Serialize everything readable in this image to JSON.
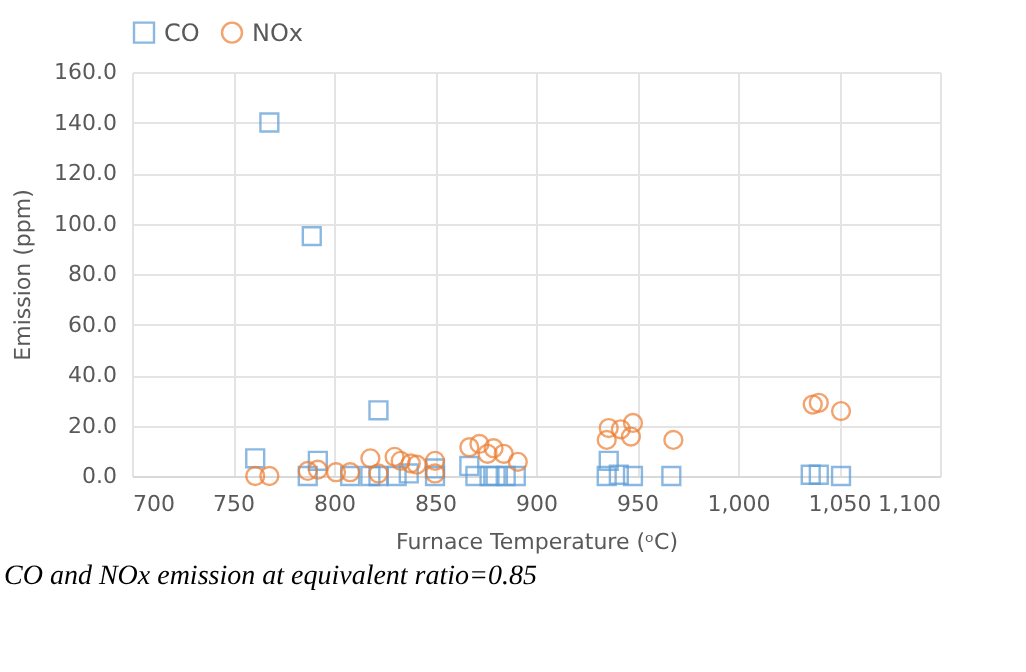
{
  "chart_data": {
    "type": "scatter",
    "xlabel": "Furnace Temperature (ᵒC)",
    "ylabel": "Emission (ppm)",
    "annotations": [
      "CO and NOx emission at equivalent ratio=0.85"
    ],
    "xlim": [
      700,
      1100
    ],
    "ylim": [
      0,
      160
    ],
    "xticks": [
      700,
      750,
      800,
      850,
      900,
      950,
      {
        "value": 1000,
        "label": "1,000"
      },
      {
        "value": 1050,
        "label": "1,050"
      },
      {
        "value": 1100,
        "label": "1,100"
      }
    ],
    "yticks": [
      {
        "value": 0,
        "label": "0.0"
      },
      {
        "value": 20,
        "label": "20.0"
      },
      {
        "value": 40,
        "label": "40.0"
      },
      {
        "value": 60,
        "label": "60.0"
      },
      {
        "value": 80,
        "label": "80.0"
      },
      {
        "value": 100,
        "label": "100.0"
      },
      {
        "value": 120,
        "label": "120.0"
      },
      {
        "value": 140,
        "label": "140.0"
      },
      {
        "value": 160,
        "label": "160.0"
      }
    ],
    "grid": true,
    "legend": "top",
    "series": [
      {
        "name": "CO",
        "color": "#5b9bd5",
        "marker": "square",
        "x": [
          768,
          789,
          761,
          792,
          822,
          787,
          808,
          818,
          822,
          831,
          837,
          850,
          850,
          867,
          870,
          877,
          880,
          885,
          890,
          936,
          935,
          941,
          948,
          967,
          1036,
          1040,
          1051
        ],
        "values": [
          140,
          95,
          7,
          6,
          26,
          0,
          0,
          0,
          0,
          0,
          1,
          3,
          0,
          4,
          0,
          0,
          0,
          0,
          0,
          6,
          0,
          0.5,
          0,
          0,
          0.5,
          0.5,
          0
        ]
      },
      {
        "name": "NOx",
        "color": "#ed7d31",
        "marker": "circle",
        "x": [
          761,
          768,
          787,
          792,
          801,
          808,
          818,
          822,
          830,
          833,
          838,
          841,
          850,
          850,
          867,
          872,
          876,
          879,
          884,
          891,
          935,
          936,
          942,
          947,
          948,
          968,
          1037,
          1040,
          1051
        ],
        "values": [
          0,
          0,
          2,
          2.5,
          1.5,
          1.5,
          7,
          1,
          7.6,
          6,
          5,
          4.5,
          6,
          1,
          11.4,
          12.7,
          8.8,
          11,
          8.8,
          5.6,
          14.3,
          19,
          18.5,
          15.6,
          21,
          14.3,
          28.3,
          29,
          25.7
        ]
      }
    ]
  }
}
